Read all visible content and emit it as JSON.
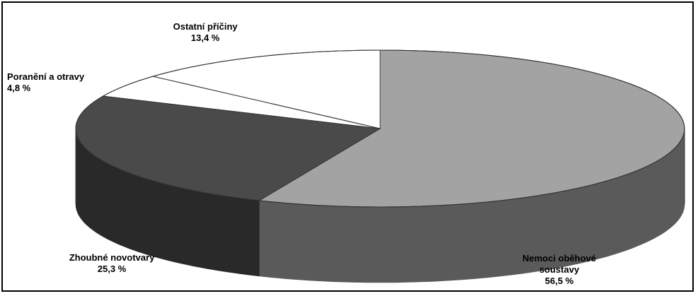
{
  "chart_data": {
    "type": "pie",
    "style": "3d",
    "slices": [
      {
        "label": "Nemoci oběhové soustavy",
        "label_lines": [
          "Nemoci oběhové",
          "soustavy"
        ],
        "value": 56.5,
        "value_text": "56,5 %",
        "color": "#a3a3a3"
      },
      {
        "label": "Zhoubné novotvary",
        "label_lines": [
          "Zhoubné novotvary"
        ],
        "value": 25.3,
        "value_text": "25,3 %",
        "color": "#4a4a4a"
      },
      {
        "label": "Poranění a otravy",
        "label_lines": [
          "Poranění a otravy"
        ],
        "value": 4.8,
        "value_text": "4,8 %",
        "color": "#ffffff"
      },
      {
        "label": "Ostatní příčiny",
        "label_lines": [
          "Ostatní příčiny"
        ],
        "value": 13.4,
        "value_text": "13,4 %",
        "color": "#ffffff"
      }
    ]
  }
}
